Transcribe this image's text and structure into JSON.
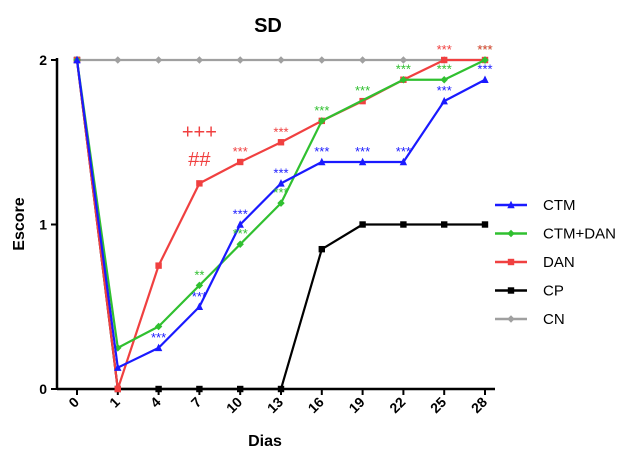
{
  "chart_data": {
    "type": "line",
    "title": "SD",
    "xlabel": "Dias",
    "ylabel": "Escore",
    "x_ticks": [
      "0",
      "1",
      "4",
      "7",
      "10",
      "13",
      "16",
      "19",
      "22",
      "25",
      "28"
    ],
    "y_ticks": [
      "0",
      "1",
      "2"
    ],
    "ylim": [
      0,
      2
    ],
    "legend_position": "right",
    "series": [
      {
        "name": "CN",
        "color": "#a0a0a0",
        "marker": "diamond",
        "values": [
          2,
          2,
          2,
          2,
          2,
          2,
          2,
          2,
          2,
          2,
          2
        ]
      },
      {
        "name": "CP",
        "color": "#000000",
        "marker": "square",
        "values": [
          2,
          0,
          0,
          0,
          0,
          0,
          0.85,
          1,
          1,
          1,
          1
        ]
      },
      {
        "name": "DAN",
        "color": "#f04040",
        "marker": "square",
        "values": [
          2,
          0,
          0.75,
          1.25,
          1.38,
          1.5,
          1.63,
          1.75,
          1.88,
          2,
          2
        ]
      },
      {
        "name": "CTM+DAN",
        "color": "#30c030",
        "marker": "diamond",
        "values": [
          2,
          0.25,
          0.38,
          0.63,
          0.88,
          1.13,
          1.63,
          null,
          1.88,
          1.88,
          2
        ]
      },
      {
        "name": "CTM",
        "color": "#1a1aff",
        "marker": "triangle",
        "values": [
          2,
          0.13,
          0.25,
          0.5,
          1,
          1.25,
          1.38,
          1.38,
          1.38,
          1.75,
          1.88
        ]
      }
    ],
    "legend_order": [
      "CTM",
      "CTM+DAN",
      "DAN",
      "CP",
      "CN"
    ],
    "annotations": [
      {
        "text": "***",
        "color": "#1a1aff",
        "x": 2,
        "y": 0.25
      },
      {
        "text": "***",
        "color": "#1a1aff",
        "x": 3,
        "y": 0.5
      },
      {
        "text": "***",
        "color": "#1a1aff",
        "x": 4,
        "y": 1.0
      },
      {
        "text": "***",
        "color": "#1a1aff",
        "x": 5,
        "y": 1.25
      },
      {
        "text": "***",
        "color": "#1a1aff",
        "x": 6,
        "y": 1.38
      },
      {
        "text": "***",
        "color": "#1a1aff",
        "x": 7,
        "y": 1.38
      },
      {
        "text": "***",
        "color": "#1a1aff",
        "x": 8,
        "y": 1.38
      },
      {
        "text": "***",
        "color": "#1a1aff",
        "x": 9,
        "y": 1.75
      },
      {
        "text": "***",
        "color": "#1a1aff",
        "x": 10,
        "y": 1.88
      },
      {
        "text": "**",
        "color": "#30c030",
        "x": 3,
        "y": 0.63
      },
      {
        "text": "***",
        "color": "#30c030",
        "x": 4,
        "y": 0.88
      },
      {
        "text": "***",
        "color": "#30c030",
        "x": 5,
        "y": 1.13
      },
      {
        "text": "***",
        "color": "#30c030",
        "x": 6,
        "y": 1.63
      },
      {
        "text": "***",
        "color": "#30c030",
        "x": 7,
        "y": 1.75
      },
      {
        "text": "***",
        "color": "#30c030",
        "x": 8,
        "y": 1.88
      },
      {
        "text": "***",
        "color": "#30c030",
        "x": 9,
        "y": 1.88
      },
      {
        "text": "***",
        "color": "#30c030",
        "x": 10,
        "y": 2.0
      },
      {
        "text": "***",
        "color": "#f04040",
        "x": 4,
        "y": 1.38
      },
      {
        "text": "***",
        "color": "#f04040",
        "x": 5,
        "y": 1.5
      },
      {
        "text": "***",
        "color": "#f04040",
        "x": 9,
        "y": 2.0
      },
      {
        "text": "***",
        "color": "#f04040",
        "x": 10,
        "y": 2.0
      },
      {
        "text": "+++",
        "color": "#f04040",
        "x": 3,
        "y": 1.5,
        "big": true
      },
      {
        "text": "##",
        "color": "#f04040",
        "x": 3,
        "y": 1.33,
        "big": true
      }
    ]
  }
}
